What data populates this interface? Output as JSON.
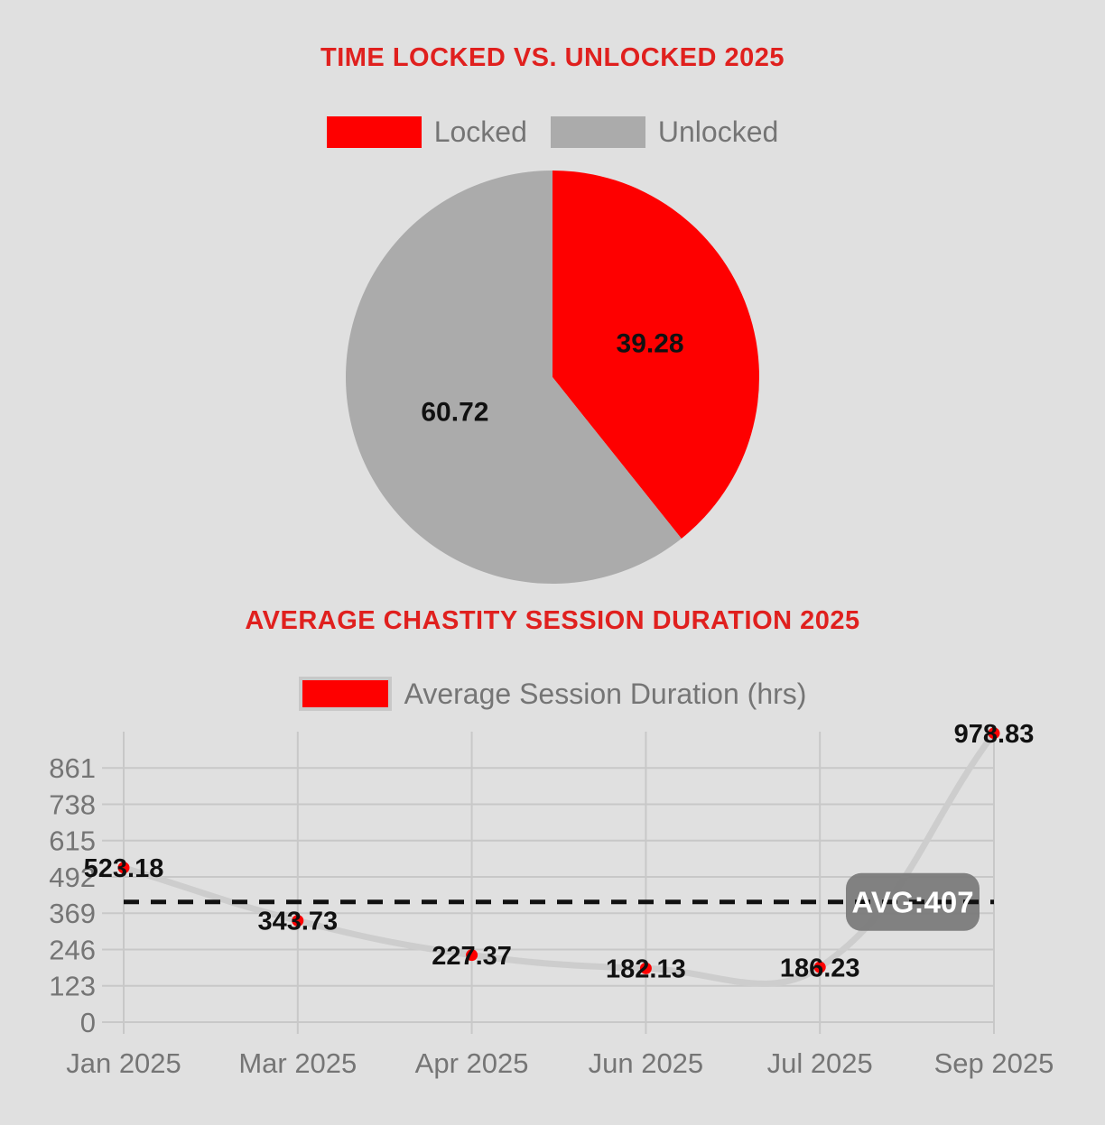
{
  "colors": {
    "background": "#e0e0e0",
    "title_red": "#e0201e",
    "series_red": "#fe0000",
    "slice_gray": "#ababab",
    "legend_text": "#757575",
    "axis_text": "#757575",
    "gridline": "#c8c8c8",
    "line_gray": "#cdcdcd",
    "avg_line": "#111111",
    "avg_badge": "#7b7b7b",
    "avg_badge_text": "#ffffff",
    "value_label": "#111111"
  },
  "chart_data": [
    {
      "type": "pie",
      "title": "TIME LOCKED VS. UNLOCKED 2025",
      "labels": [
        "Locked",
        "Unlocked"
      ],
      "values": [
        39.28,
        60.72
      ],
      "value_labels": [
        "39.28",
        "60.72"
      ],
      "colors": [
        "#fe0000",
        "#ababab"
      ],
      "legend_position": "top",
      "start_angle": "12-oclock, clockwise"
    },
    {
      "type": "line",
      "title": "AVERAGE CHASTITY SESSION DURATION 2025",
      "series_label": "Average Session Duration (hrs)",
      "categories": [
        "Jan 2025",
        "Mar 2025",
        "Apr 2025",
        "Jun 2025",
        "Jul 2025",
        "Sep 2025"
      ],
      "values": [
        523.18,
        343.73,
        227.37,
        182.13,
        186.23,
        978.83
      ],
      "value_labels": [
        "523.18",
        "343.73",
        "227.37",
        "182.13",
        "186.23",
        "978.83"
      ],
      "yticks": [
        0,
        123,
        246,
        369,
        492,
        615,
        738,
        861
      ],
      "ylim": [
        0,
        984
      ],
      "average": {
        "value": 407,
        "label": "AVG:407",
        "style": "dashed"
      },
      "line_color": "#cdcdcd",
      "point_color": "#fe0000",
      "grid": true,
      "legend_position": "top"
    }
  ]
}
